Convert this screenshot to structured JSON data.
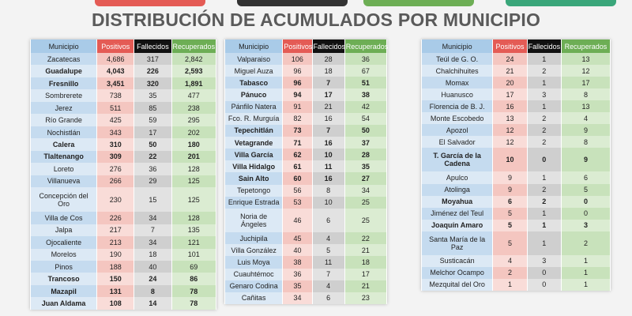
{
  "title": "DISTRIBUCIÓN DE ACUMULADOS POR MUNICIPIO",
  "tables": [
    {
      "header": [
        "Municipio",
        "Positivos",
        "Fallecidos",
        "Recuperados"
      ],
      "rows": [
        [
          "Zacatecas",
          "4,686",
          "317",
          "2,842"
        ],
        [
          "Guadalupe",
          "4,043",
          "226",
          "2,593"
        ],
        [
          "Fresnillo",
          "3,451",
          "320",
          "1,891"
        ],
        [
          "Sombrerete",
          "738",
          "35",
          "477"
        ],
        [
          "Jerez",
          "511",
          "85",
          "238"
        ],
        [
          "Río Grande",
          "425",
          "59",
          "295"
        ],
        [
          "Nochistlán",
          "343",
          "17",
          "202"
        ],
        [
          "Calera",
          "310",
          "50",
          "180"
        ],
        [
          "Tlaltenango",
          "309",
          "22",
          "201"
        ],
        [
          "Loreto",
          "276",
          "36",
          "128"
        ],
        [
          "Villanueva",
          "266",
          "29",
          "125"
        ],
        [
          "Concepción del Oro",
          "230",
          "15",
          "125"
        ],
        [
          "Villa de Cos",
          "226",
          "34",
          "128"
        ],
        [
          "Jalpa",
          "217",
          "7",
          "135"
        ],
        [
          "Ojocaliente",
          "213",
          "34",
          "121"
        ],
        [
          "Morelos",
          "190",
          "18",
          "101"
        ],
        [
          "Pinos",
          "188",
          "40",
          "69"
        ],
        [
          "Trancoso",
          "150",
          "24",
          "86"
        ],
        [
          "Mazapil",
          "131",
          "8",
          "78"
        ],
        [
          "Juan Aldama",
          "108",
          "14",
          "78"
        ]
      ]
    },
    {
      "header": [
        "Municipio",
        "Positivos",
        "Fallecidos",
        "Recuperados"
      ],
      "rows": [
        [
          "Valparaiso",
          "106",
          "28",
          "36"
        ],
        [
          "Miguel Auza",
          "96",
          "18",
          "67"
        ],
        [
          "Tabasco",
          "96",
          "7",
          "51"
        ],
        [
          "Pánuco",
          "94",
          "17",
          "38"
        ],
        [
          "Pánfilo Natera",
          "91",
          "21",
          "42"
        ],
        [
          "Fco. R. Murguía",
          "82",
          "16",
          "54"
        ],
        [
          "Tepechitlán",
          "73",
          "7",
          "50"
        ],
        [
          "Vetagrande",
          "71",
          "16",
          "37"
        ],
        [
          "Villa García",
          "62",
          "10",
          "28"
        ],
        [
          "Villa Hidalgo",
          "61",
          "11",
          "35"
        ],
        [
          "Sain Alto",
          "60",
          "16",
          "27"
        ],
        [
          "Tepetongo",
          "56",
          "8",
          "34"
        ],
        [
          "Enrique Estrada",
          "53",
          "10",
          "25"
        ],
        [
          "Noria de Ángeles",
          "46",
          "6",
          "25"
        ],
        [
          "Juchipila",
          "45",
          "4",
          "22"
        ],
        [
          "Villa González",
          "40",
          "5",
          "21"
        ],
        [
          "Luis Moya",
          "38",
          "11",
          "18"
        ],
        [
          "Cuauhtémoc",
          "36",
          "7",
          "17"
        ],
        [
          "Genaro Codina",
          "35",
          "4",
          "21"
        ],
        [
          "Cañitas",
          "34",
          "6",
          "23"
        ]
      ]
    },
    {
      "header": [
        "Municipio",
        "Positivos",
        "Fallecidos",
        "Recuperados"
      ],
      "rows": [
        [
          "Teúl de G. O.",
          "24",
          "1",
          "13"
        ],
        [
          "Chalchihuites",
          "21",
          "2",
          "12"
        ],
        [
          "Momax",
          "20",
          "1",
          "17"
        ],
        [
          "Huanusco",
          "17",
          "3",
          "8"
        ],
        [
          "Florencia de B. J.",
          "16",
          "1",
          "13"
        ],
        [
          "Monte Escobedo",
          "13",
          "2",
          "4"
        ],
        [
          "Apozol",
          "12",
          "2",
          "9"
        ],
        [
          "El Salvador",
          "12",
          "2",
          "8"
        ],
        [
          "T. García de la Cadena",
          "10",
          "0",
          "9"
        ],
        [
          "Apulco",
          "9",
          "1",
          "6"
        ],
        [
          "Atolinga",
          "9",
          "2",
          "5"
        ],
        [
          "Moyahua",
          "6",
          "2",
          "0"
        ],
        [
          "Jiménez del Teul",
          "5",
          "1",
          "0"
        ],
        [
          "Joaquín Amaro",
          "5",
          "1",
          "3"
        ],
        [
          "Santa María de la Paz",
          "5",
          "1",
          "2"
        ],
        [
          "Susticacán",
          "4",
          "3",
          "1"
        ],
        [
          "Melchor Ocampo",
          "2",
          "0",
          "1"
        ],
        [
          "Mezquital del Oro",
          "1",
          "0",
          "1"
        ]
      ]
    }
  ]
}
